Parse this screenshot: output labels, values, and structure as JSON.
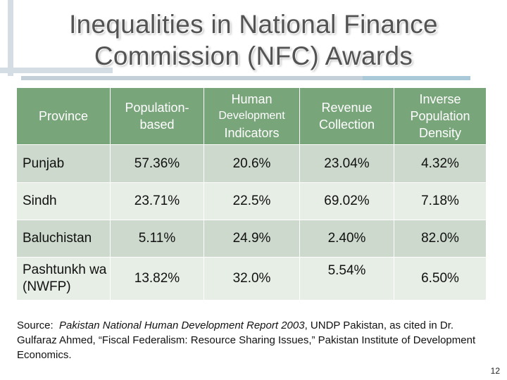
{
  "title": [
    "Inequalities in National Finance",
    "Commission (NFC) Awards"
  ],
  "table": {
    "headers": {
      "province": "Province",
      "population": "Population-based",
      "hdi_line1": "Human",
      "hdi_line2": "Development",
      "hdi_line3": "Indicators",
      "revenue": "Revenue Collection",
      "inverse": "Inverse Population Density"
    },
    "rows": [
      {
        "province": "Punjab",
        "population": "57.36%",
        "hdi": "20.6%",
        "revenue": "23.04%",
        "inverse": "4.32%"
      },
      {
        "province": "Sindh",
        "population": "23.71%",
        "hdi": "22.5%",
        "revenue": "69.02%",
        "inverse": "7.18%"
      },
      {
        "province": "Baluchistan",
        "population": "5.11%",
        "hdi": "24.9%",
        "revenue": "2.40%",
        "inverse": "82.0%"
      },
      {
        "province": "Pashtunkh wa (NWFP)",
        "population": "13.82%",
        "hdi": "32.0%",
        "revenue": "5.54%",
        "inverse": "6.50%"
      }
    ]
  },
  "source": {
    "prefix": "Source:  ",
    "report": "Pakistan National Human Development Report 2003",
    "suffix": ", UNDP Pakistan, as cited in Dr. Gulfaraz Ahmed, “Fiscal Federalism: Resource Sharing Issues,” Pakistan Institute of Development Economics."
  },
  "page_number": "12",
  "colors": {
    "header_bg": "#79a57b",
    "row_dark": "#ccd9cc",
    "row_light": "#e7eee6"
  }
}
